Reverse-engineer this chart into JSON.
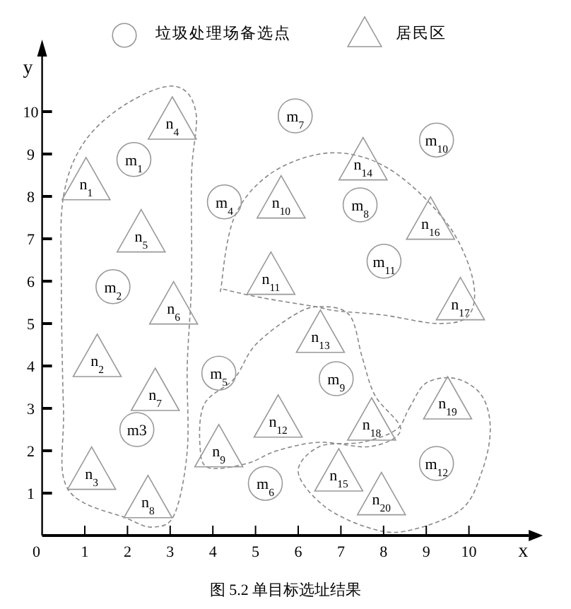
{
  "chart_data": {
    "type": "scatter",
    "xlabel": "x",
    "ylabel": "y",
    "xlim": [
      0,
      11.4
    ],
    "ylim": [
      0,
      11.3
    ],
    "xticks": [
      0,
      1,
      2,
      3,
      4,
      5,
      6,
      7,
      8,
      9,
      10
    ],
    "yticks": [
      1,
      2,
      3,
      4,
      5,
      6,
      7,
      8,
      9,
      10
    ],
    "legend": "top",
    "grid": false,
    "series": [
      {
        "name": "垃圾处理场备选点",
        "marker": "circle",
        "color": "#999999",
        "x": [
          2.15,
          1.66,
          2.22,
          4.27,
          4.14,
          5.23,
          5.93,
          7.45,
          6.89,
          9.24,
          8.01,
          9.24
        ],
        "values": [
          8.87,
          5.87,
          2.5,
          7.87,
          3.83,
          1.23,
          9.9,
          7.8,
          3.7,
          9.33,
          6.47,
          1.7
        ]
      },
      {
        "name": "居民区",
        "marker": "triangle",
        "color": "#999999",
        "x": [
          1.03,
          1.29,
          1.16,
          3.05,
          2.32,
          3.08,
          2.65,
          2.48,
          4.14,
          5.6,
          5.36,
          5.53,
          6.52,
          7.52,
          6.95,
          9.1,
          9.8,
          7.72,
          9.5,
          7.95
        ],
        "values": [
          8.3,
          4.13,
          1.47,
          9.73,
          7.07,
          5.37,
          3.33,
          0.8,
          2.0,
          7.87,
          6.07,
          2.7,
          4.7,
          8.77,
          1.43,
          7.37,
          5.47,
          2.63,
          3.13,
          0.87
        ]
      }
    ],
    "annotations": [
      {
        "text": "m$_{1}$",
        "x": 2.15,
        "y": 8.87
      },
      {
        "text": "m$_{2}$",
        "x": 1.66,
        "y": 5.87
      },
      {
        "text": "m3",
        "x": 2.22,
        "y": 2.5
      },
      {
        "text": "m$_{4}$",
        "x": 4.27,
        "y": 7.87
      },
      {
        "text": "m$_{5}$",
        "x": 4.14,
        "y": 3.83
      },
      {
        "text": "m$_{6}$",
        "x": 5.23,
        "y": 1.23
      },
      {
        "text": "m$_{7}$",
        "x": 5.93,
        "y": 9.9
      },
      {
        "text": "m$_{8}$",
        "x": 7.45,
        "y": 7.8
      },
      {
        "text": "m$_{9}$",
        "x": 6.89,
        "y": 3.7
      },
      {
        "text": "m$_{10}$",
        "x": 9.24,
        "y": 9.33
      },
      {
        "text": "m$_{11}$",
        "x": 8.01,
        "y": 6.47
      },
      {
        "text": "m$_{12}$",
        "x": 9.24,
        "y": 1.7
      },
      {
        "text": "n$_{1}$",
        "x": 1.03,
        "y": 8.3
      },
      {
        "text": "n$_{2}$",
        "x": 1.29,
        "y": 4.13
      },
      {
        "text": "n$_{3}$",
        "x": 1.16,
        "y": 1.47
      },
      {
        "text": "n$_{4}$",
        "x": 3.05,
        "y": 9.73
      },
      {
        "text": "n$_{5}$",
        "x": 2.32,
        "y": 7.07
      },
      {
        "text": "n$_{6}$",
        "x": 3.08,
        "y": 5.37
      },
      {
        "text": "n$_{7}$",
        "x": 2.65,
        "y": 3.33
      },
      {
        "text": "n$_{8}$",
        "x": 2.48,
        "y": 0.8
      },
      {
        "text": "n$_{9}$",
        "x": 4.14,
        "y": 2.0
      },
      {
        "text": "n$_{10}$",
        "x": 5.6,
        "y": 7.87
      },
      {
        "text": "n$_{11}$",
        "x": 5.36,
        "y": 6.07
      },
      {
        "text": "n$_{12}$",
        "x": 5.53,
        "y": 2.7
      },
      {
        "text": "n$_{13}$",
        "x": 6.52,
        "y": 4.7
      },
      {
        "text": "n$_{14}$",
        "x": 7.52,
        "y": 8.77
      },
      {
        "text": "n$_{15}$",
        "x": 6.95,
        "y": 1.43
      },
      {
        "text": "n$_{16}$",
        "x": 9.1,
        "y": 7.37
      },
      {
        "text": "n$_{17}$",
        "x": 9.8,
        "y": 5.47
      },
      {
        "text": "n$_{18}$",
        "x": 7.72,
        "y": 2.63
      },
      {
        "text": "n$_{19}$",
        "x": 9.5,
        "y": 3.13
      },
      {
        "text": "n$_{20}$",
        "x": 7.95,
        "y": 0.87
      },
      "图 5.2 单目标选址结果"
    ]
  }
}
